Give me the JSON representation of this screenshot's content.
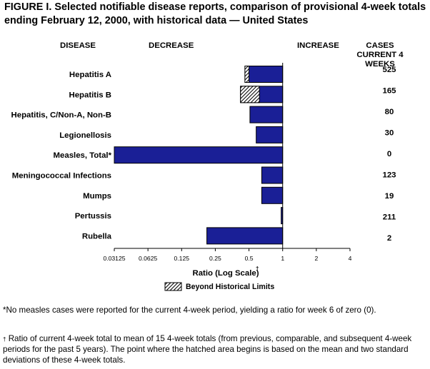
{
  "title": "FIGURE I. Selected notifiable disease reports, comparison of provisional 4-week totals ending February 12, 2000, with historical data — United States",
  "headers": {
    "disease": "DISEASE",
    "decrease": "DECREASE",
    "increase": "INCREASE",
    "cases": "CASES CURRENT 4 WEEKS"
  },
  "legend_label": "Beyond Historical Limits",
  "footnotes": {
    "star": "*No measles cases were reported for the current 4-week period, yielding a ratio for week 6 of zero (0).",
    "dagger_mark": "†",
    "dagger": "Ratio of current 4-week total to mean of 15 4-week totals (from previous, comparable, and subsequent 4-week periods for the past 5 years). The point where the hatched area begins is based on the mean and two standard deviations of these 4-week totals."
  },
  "chart_data": {
    "type": "bar",
    "orientation": "horizontal",
    "x_scale": "log2",
    "xlabel": "Ratio (Log Scale)",
    "xlabel_mark": "†",
    "xlim": [
      0.03125,
      4
    ],
    "x_ticks": [
      0.03125,
      0.0625,
      0.125,
      0.25,
      0.5,
      1,
      2,
      4
    ],
    "x_tick_labels": [
      "0.03125",
      "0.0625",
      "0.125",
      "0.25",
      "0.5",
      "1",
      "2",
      "4"
    ],
    "reference_line": 1,
    "categories": [
      "Hepatitis A",
      "Hepatitis B",
      "Hepatitis, C/Non-A, Non-B",
      "Legionellosis",
      "Measles, Total*",
      "Meningococcal Infections",
      "Mumps",
      "Pertussis",
      "Rubella"
    ],
    "ratios": [
      0.46,
      0.42,
      0.51,
      0.58,
      0.03125,
      0.65,
      0.65,
      0.97,
      0.21
    ],
    "hatch_start": [
      0.5,
      0.62,
      null,
      null,
      null,
      null,
      null,
      null,
      null
    ],
    "cases_current_4_weeks": [
      "525",
      "165",
      "80",
      "30",
      "0",
      "123",
      "19",
      "211",
      "2"
    ],
    "colors": {
      "bar": "#1a1f96",
      "bar_edge": "#000000",
      "hatch_fill": "#ffffff",
      "hatch_line": "#000000"
    }
  }
}
